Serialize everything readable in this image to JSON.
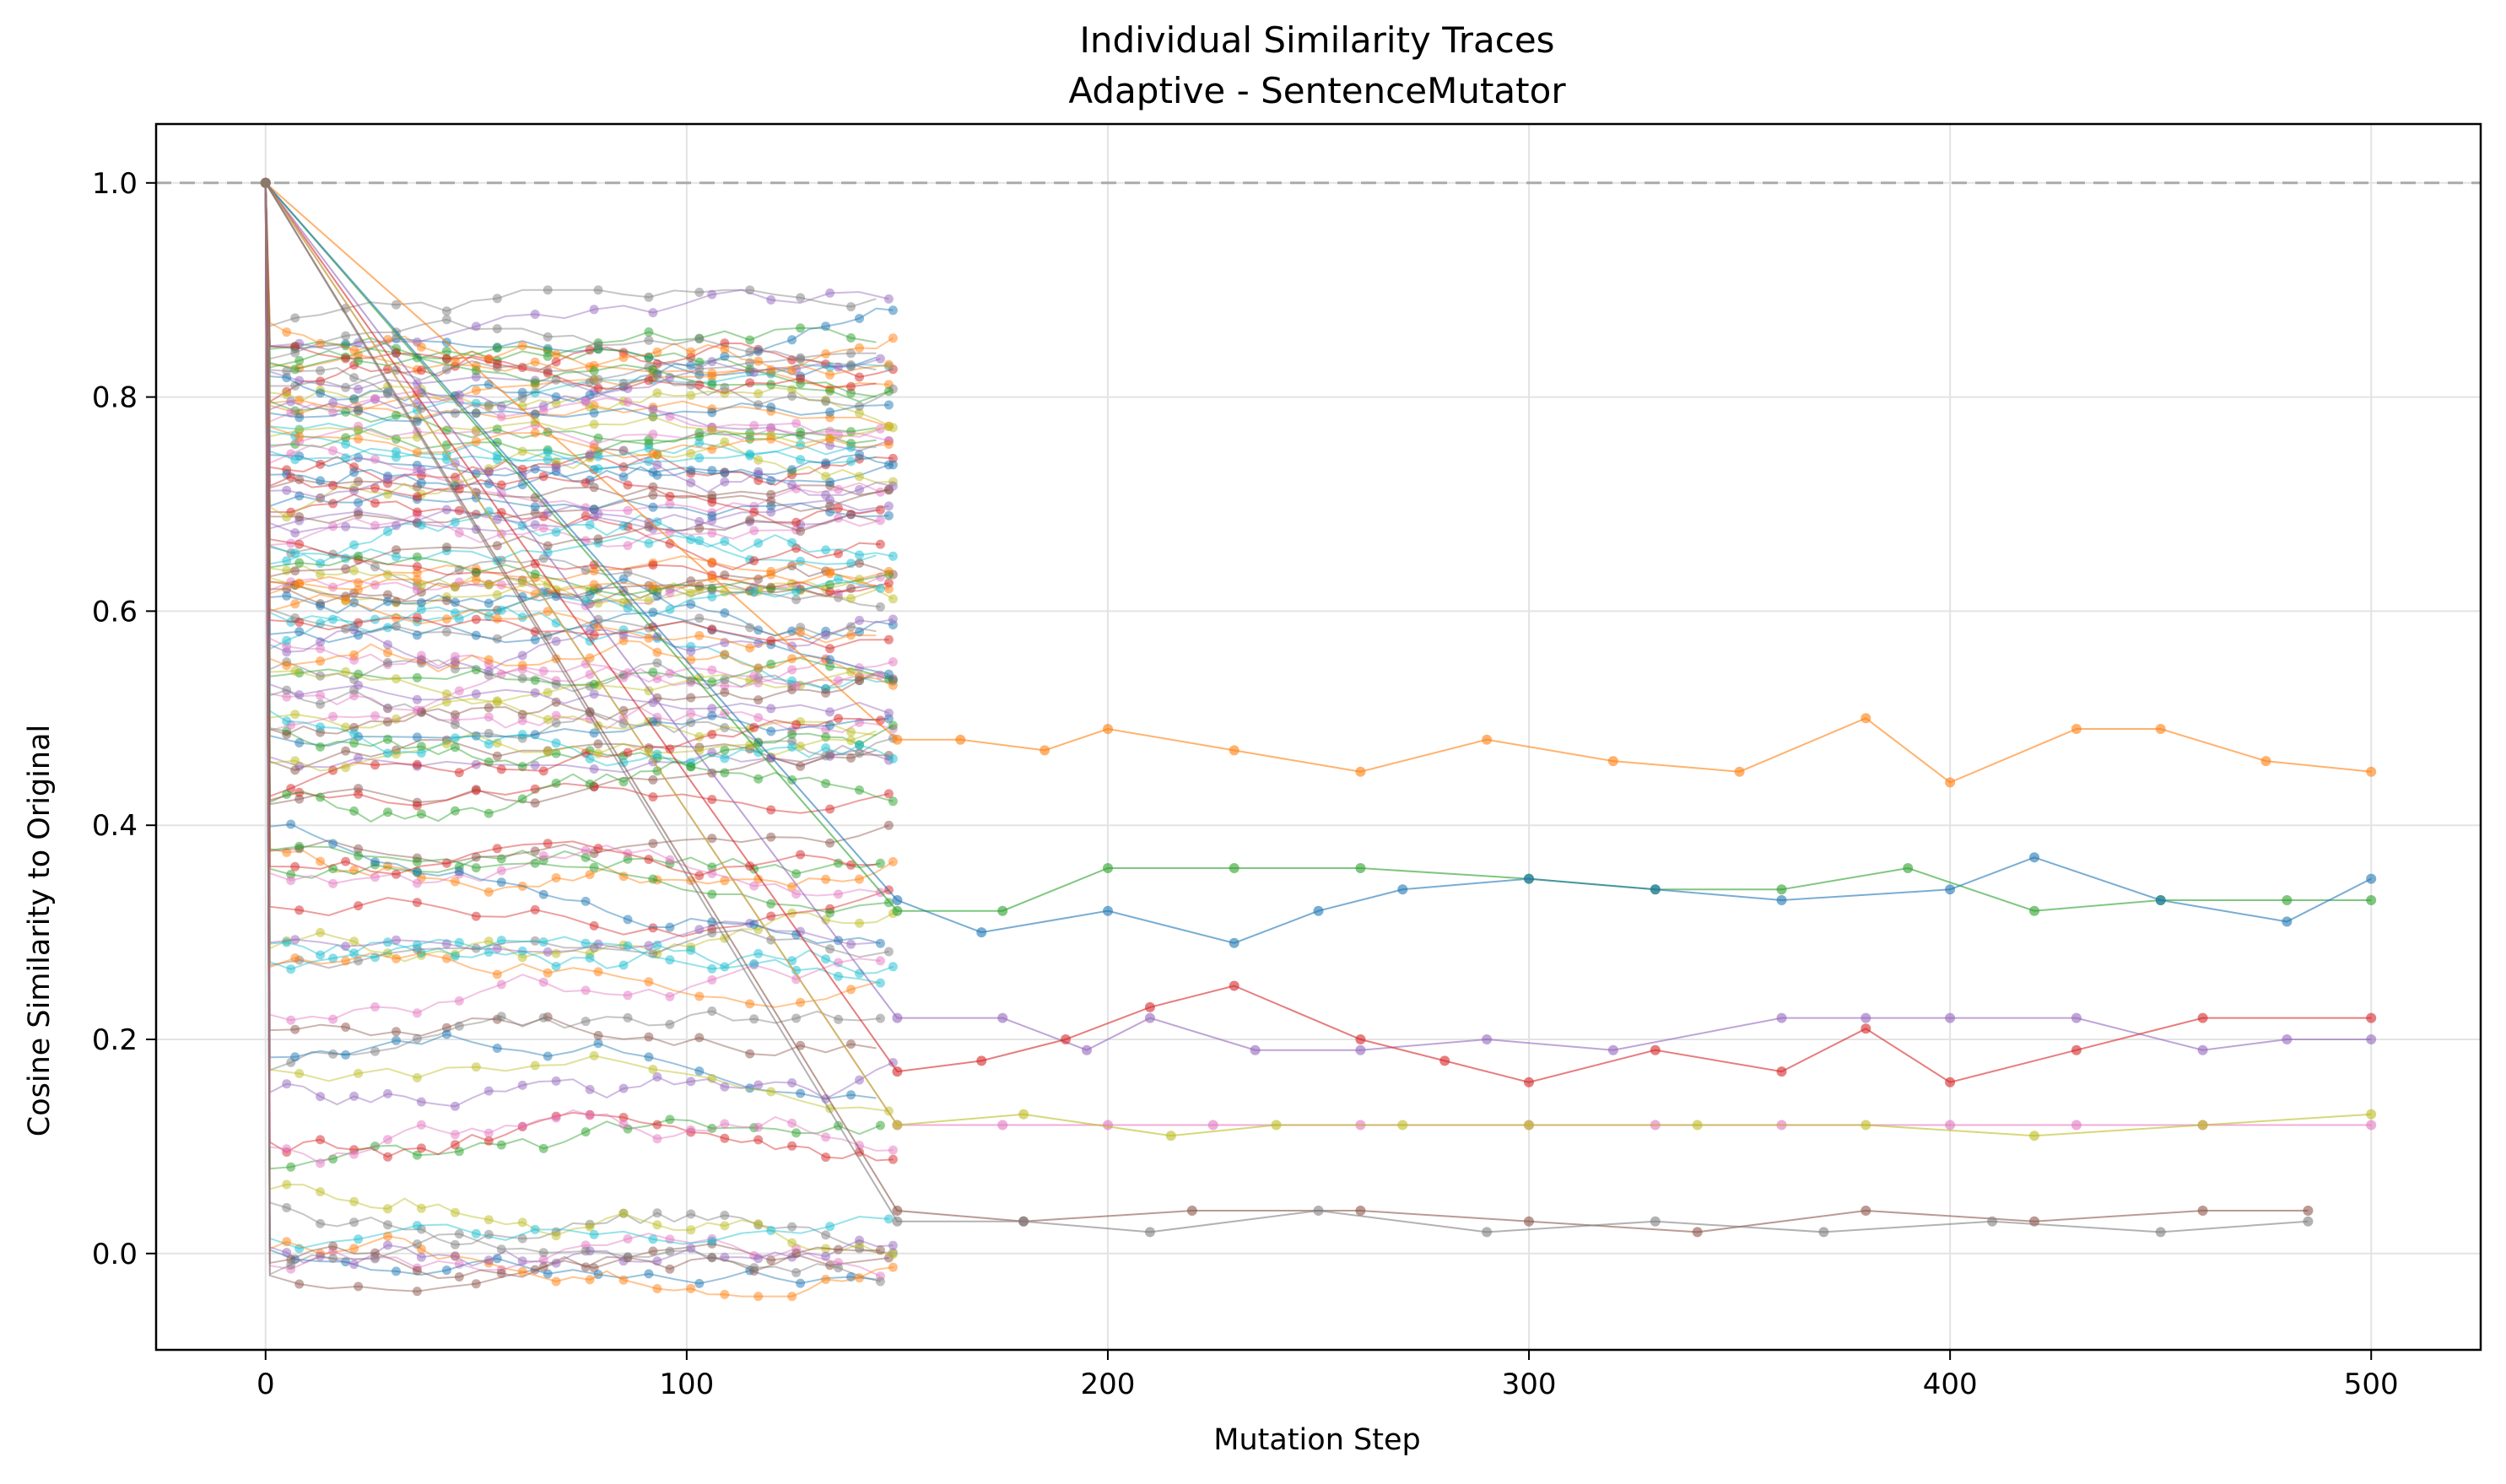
{
  "chart_data": {
    "type": "line",
    "title": "Individual Similarity Traces",
    "subtitle": "Adaptive - SentenceMutator",
    "xlabel": "Mutation Step",
    "ylabel": "Cosine Similarity to Original",
    "xlim": [
      -26,
      526
    ],
    "ylim": [
      -0.09,
      1.055
    ],
    "xticks": [
      0,
      100,
      200,
      300,
      400,
      500
    ],
    "yticks": [
      0.0,
      0.2,
      0.4,
      0.6,
      0.8,
      1.0
    ],
    "xtick_labels": [
      "0",
      "100",
      "200",
      "300",
      "400",
      "500"
    ],
    "ytick_labels": [
      "0.0",
      "0.2",
      "0.4",
      "0.6",
      "0.8",
      "1.0"
    ],
    "grid": true,
    "legend": "none",
    "reference_line": {
      "y": 1.0,
      "style": "dashed",
      "color": "#999999"
    },
    "palette": [
      "#1f77b4",
      "#ff7f0e",
      "#2ca02c",
      "#d62728",
      "#9467bd",
      "#8c564b",
      "#e377c2",
      "#7f7f7f",
      "#bcbd22",
      "#17becf"
    ],
    "short_traces_summary": {
      "count": 118,
      "x_range": [
        0,
        150
      ],
      "start_value": 1.0,
      "value_range": [
        -0.04,
        0.9
      ]
    },
    "long_traces": [
      {
        "color": "#ff7f0e",
        "x": [
          0,
          150,
          165,
          185,
          200,
          230,
          260,
          290,
          320,
          350,
          380,
          400,
          430,
          450,
          475,
          500
        ],
        "y": [
          1.0,
          0.48,
          0.48,
          0.47,
          0.49,
          0.47,
          0.45,
          0.48,
          0.46,
          0.45,
          0.5,
          0.44,
          0.49,
          0.49,
          0.46,
          0.45
        ]
      },
      {
        "color": "#2ca02c",
        "x": [
          0,
          150,
          175,
          200,
          230,
          260,
          300,
          330,
          360,
          390,
          420,
          450,
          480,
          500
        ],
        "y": [
          1.0,
          0.32,
          0.32,
          0.36,
          0.36,
          0.36,
          0.35,
          0.34,
          0.34,
          0.36,
          0.32,
          0.33,
          0.33,
          0.33
        ]
      },
      {
        "color": "#1f77b4",
        "x": [
          0,
          150,
          170,
          200,
          230,
          250,
          270,
          300,
          330,
          360,
          400,
          420,
          450,
          480,
          500
        ],
        "y": [
          1.0,
          0.33,
          0.3,
          0.32,
          0.29,
          0.32,
          0.34,
          0.35,
          0.34,
          0.33,
          0.34,
          0.37,
          0.33,
          0.31,
          0.35
        ]
      },
      {
        "color": "#9467bd",
        "x": [
          0,
          150,
          175,
          195,
          210,
          235,
          260,
          290,
          320,
          360,
          380,
          400,
          430,
          460,
          480,
          500
        ],
        "y": [
          1.0,
          0.22,
          0.22,
          0.19,
          0.22,
          0.19,
          0.19,
          0.2,
          0.19,
          0.22,
          0.22,
          0.22,
          0.22,
          0.19,
          0.2,
          0.2
        ]
      },
      {
        "color": "#d62728",
        "x": [
          0,
          150,
          170,
          190,
          210,
          230,
          260,
          280,
          300,
          330,
          360,
          380,
          400,
          430,
          460,
          500
        ],
        "y": [
          1.0,
          0.17,
          0.18,
          0.2,
          0.23,
          0.25,
          0.2,
          0.18,
          0.16,
          0.19,
          0.17,
          0.21,
          0.16,
          0.19,
          0.22,
          0.22
        ]
      },
      {
        "color": "#e377c2",
        "x": [
          0,
          150,
          175,
          200,
          225,
          260,
          300,
          330,
          360,
          400,
          430,
          460,
          500
        ],
        "y": [
          1.0,
          0.12,
          0.12,
          0.12,
          0.12,
          0.12,
          0.12,
          0.12,
          0.12,
          0.12,
          0.12,
          0.12,
          0.12
        ]
      },
      {
        "color": "#bcbd22",
        "x": [
          0,
          150,
          180,
          215,
          240,
          270,
          300,
          340,
          380,
          420,
          460,
          500
        ],
        "y": [
          1.0,
          0.12,
          0.13,
          0.11,
          0.12,
          0.12,
          0.12,
          0.12,
          0.12,
          0.11,
          0.12,
          0.13
        ]
      },
      {
        "color": "#8c564b",
        "x": [
          0,
          150,
          180,
          220,
          260,
          300,
          340,
          380,
          420,
          460,
          485
        ],
        "y": [
          1.0,
          0.04,
          0.03,
          0.04,
          0.04,
          0.03,
          0.02,
          0.04,
          0.03,
          0.04,
          0.04
        ]
      },
      {
        "color": "#7f7f7f",
        "x": [
          0,
          150,
          180,
          210,
          250,
          290,
          330,
          370,
          410,
          450,
          485
        ],
        "y": [
          1.0,
          0.03,
          0.03,
          0.02,
          0.04,
          0.02,
          0.03,
          0.02,
          0.03,
          0.02,
          0.03
        ]
      }
    ]
  }
}
